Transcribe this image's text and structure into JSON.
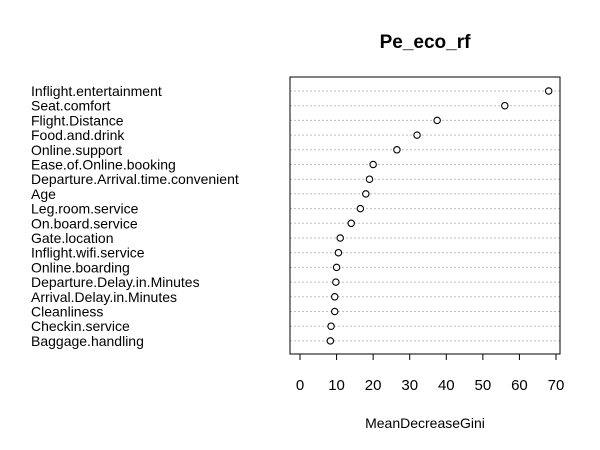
{
  "chart_data": {
    "type": "scatter",
    "title": "Pe_eco_rf",
    "xlabel": "MeanDecreaseGini",
    "ylabel": "",
    "xlim": [
      0,
      70
    ],
    "xticks": [
      "0",
      "10",
      "20",
      "30",
      "40",
      "50",
      "60",
      "70"
    ],
    "grid": false,
    "categories": [
      "Inflight.entertainment",
      "Seat.comfort",
      "Flight.Distance",
      "Food.and.drink",
      "Online.support",
      "Ease.of.Online.booking",
      "Departure.Arrival.time.convenient",
      "Age",
      "Leg.room.service",
      "On.board.service",
      "Gate.location",
      "Inflight.wifi.service",
      "Online.boarding",
      "Departure.Delay.in.Minutes",
      "Arrival.Delay.in.Minutes",
      "Cleanliness",
      "Checkin.service",
      "Baggage.handling"
    ],
    "values": [
      68.0,
      56.0,
      37.5,
      32.0,
      26.5,
      20.0,
      19.0,
      18.0,
      16.5,
      14.0,
      11.0,
      10.5,
      10.0,
      9.8,
      9.5,
      9.5,
      8.5,
      8.3
    ]
  }
}
